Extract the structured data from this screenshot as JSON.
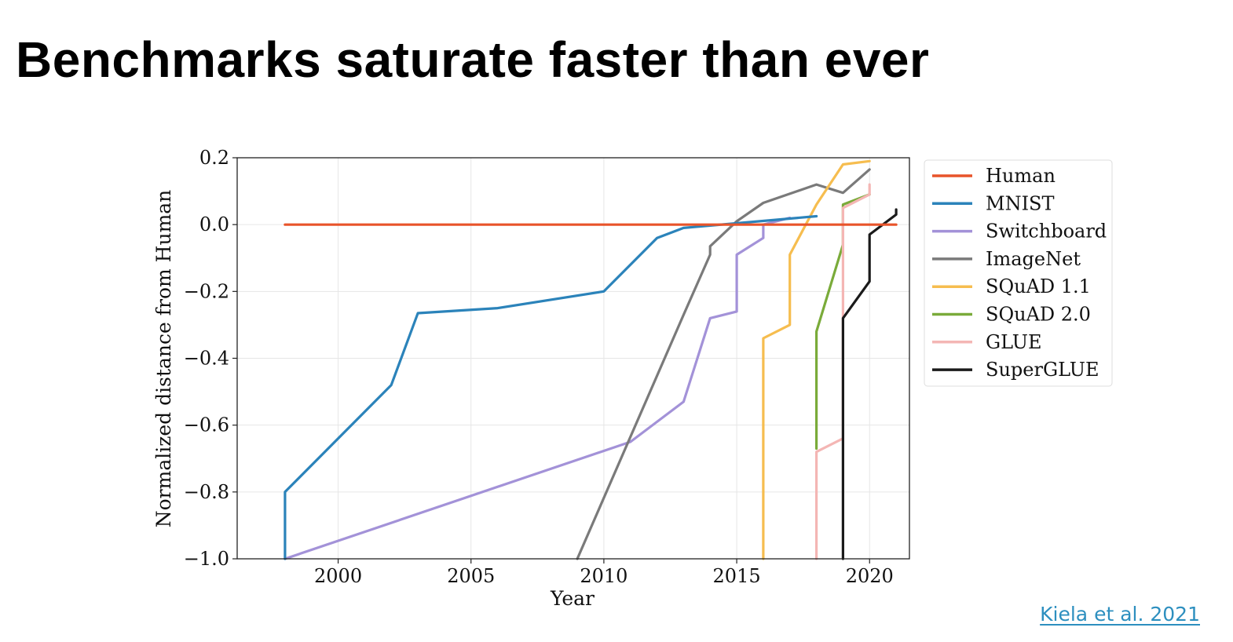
{
  "slide": {
    "title": "Benchmarks saturate faster than ever",
    "citation": "Kiela et al. 2021"
  },
  "chart_data": {
    "type": "line",
    "xlabel": "Year",
    "ylabel": "Normalized distance from Human",
    "xlim": [
      1996.2,
      2021.5
    ],
    "ylim": [
      -1.0,
      0.2
    ],
    "xticks": [
      2000,
      2005,
      2010,
      2015,
      2020
    ],
    "yticks": [
      0.2,
      0.0,
      -0.2,
      -0.4,
      -0.6,
      -0.8,
      -1.0
    ],
    "ytick_labels": [
      "0.2",
      "0.0",
      "−0.2",
      "−0.4",
      "−0.6",
      "−0.8",
      "−1.0"
    ],
    "grid": true,
    "legend": "outside-right",
    "series": [
      {
        "name": "Human",
        "color": "#e8542a",
        "x": [
          1998,
          2021
        ],
        "y": [
          0.0,
          0.0
        ]
      },
      {
        "name": "MNIST",
        "color": "#2b83ba",
        "x": [
          1998,
          1998,
          2002,
          2003,
          2006,
          2010,
          2012,
          2013,
          2018
        ],
        "y": [
          -1.0,
          -0.8,
          -0.48,
          -0.265,
          -0.25,
          -0.2,
          -0.04,
          -0.01,
          0.025
        ]
      },
      {
        "name": "Switchboard",
        "color": "#a392d8",
        "x": [
          1998,
          2011,
          2013,
          2014,
          2015,
          2015,
          2016,
          2016,
          2017
        ],
        "y": [
          -1.0,
          -0.65,
          -0.53,
          -0.28,
          -0.26,
          -0.09,
          -0.04,
          0.0,
          0.02
        ]
      },
      {
        "name": "ImageNet",
        "color": "#7a7a7a",
        "x": [
          2009,
          2013,
          2014,
          2014,
          2015,
          2016,
          2018,
          2019,
          2020
        ],
        "y": [
          -1.0,
          -0.27,
          -0.09,
          -0.065,
          0.01,
          0.065,
          0.12,
          0.095,
          0.165
        ]
      },
      {
        "name": "SQuAD 1.1",
        "color": "#f6bd4f",
        "x": [
          2016,
          2016,
          2017,
          2017,
          2018,
          2019,
          2020
        ],
        "y": [
          -1.0,
          -0.34,
          -0.3,
          -0.09,
          0.06,
          0.18,
          0.19
        ]
      },
      {
        "name": "SQuAD 2.0",
        "color": "#7aab3a",
        "x": [
          2018,
          2018,
          2019,
          2019,
          2020
        ],
        "y": [
          -0.67,
          -0.32,
          -0.06,
          0.06,
          0.09
        ]
      },
      {
        "name": "GLUE",
        "color": "#f4b6b4",
        "x": [
          2018,
          2018,
          2019,
          2019,
          2020,
          2020
        ],
        "y": [
          -1.0,
          -0.68,
          -0.64,
          0.05,
          0.09,
          0.12
        ]
      },
      {
        "name": "SuperGLUE",
        "color": "#1a1a1a",
        "x": [
          2019,
          2019,
          2020,
          2020,
          2021,
          2021
        ],
        "y": [
          -1.0,
          -0.28,
          -0.17,
          -0.03,
          0.03,
          0.045
        ]
      }
    ]
  }
}
